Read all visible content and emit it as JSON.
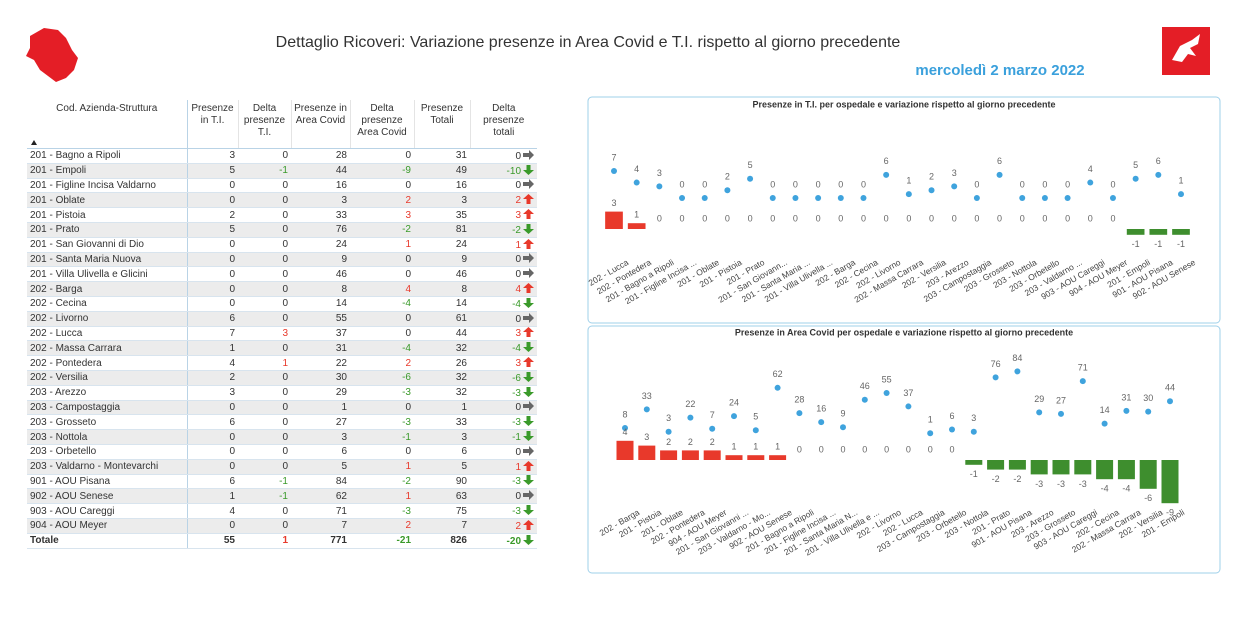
{
  "header": {
    "title": "Dettaglio Ricoveri: Variazione presenze in Area Covid e T.I. rispetto al giorno precedente",
    "date": "mercoledì 2 marzo 2022"
  },
  "table": {
    "columns": [
      "Cod. Azienda-Struttura",
      "Presenze in T.I.",
      "Delta presenze T.I.",
      "Presenze in Area Covid",
      "Delta presenze Area Covid",
      "Presenze Totali",
      "Delta presenze totali"
    ],
    "rows": [
      [
        "201 - Bagno a Ripoli",
        3,
        0,
        28,
        0,
        31,
        0
      ],
      [
        "201 - Empoli",
        5,
        -1,
        44,
        -9,
        49,
        -10
      ],
      [
        "201 - Figline Incisa Valdarno",
        0,
        0,
        16,
        0,
        16,
        0
      ],
      [
        "201 - Oblate",
        0,
        0,
        3,
        2,
        3,
        2
      ],
      [
        "201 - Pistoia",
        2,
        0,
        33,
        3,
        35,
        3
      ],
      [
        "201 - Prato",
        5,
        0,
        76,
        -2,
        81,
        -2
      ],
      [
        "201 - San Giovanni di Dio",
        0,
        0,
        24,
        1,
        24,
        1
      ],
      [
        "201 - Santa Maria Nuova",
        0,
        0,
        9,
        0,
        9,
        0
      ],
      [
        "201 - Villa Ulivella e Glicini",
        0,
        0,
        46,
        0,
        46,
        0
      ],
      [
        "202 - Barga",
        0,
        0,
        8,
        4,
        8,
        4
      ],
      [
        "202 - Cecina",
        0,
        0,
        14,
        -4,
        14,
        -4
      ],
      [
        "202 - Livorno",
        6,
        0,
        55,
        0,
        61,
        0
      ],
      [
        "202 - Lucca",
        7,
        3,
        37,
        0,
        44,
        3
      ],
      [
        "202 - Massa Carrara",
        1,
        0,
        31,
        -4,
        32,
        -4
      ],
      [
        "202 - Pontedera",
        4,
        1,
        22,
        2,
        26,
        3
      ],
      [
        "202 - Versilia",
        2,
        0,
        30,
        -6,
        32,
        -6
      ],
      [
        "203 - Arezzo",
        3,
        0,
        29,
        -3,
        32,
        -3
      ],
      [
        "203 - Campostaggia",
        0,
        0,
        1,
        0,
        1,
        0
      ],
      [
        "203 - Grosseto",
        6,
        0,
        27,
        -3,
        33,
        -3
      ],
      [
        "203 - Nottola",
        0,
        0,
        3,
        -1,
        3,
        -1
      ],
      [
        "203 - Orbetello",
        0,
        0,
        6,
        0,
        6,
        0
      ],
      [
        "203 - Valdarno - Montevarchi",
        0,
        0,
        5,
        1,
        5,
        1
      ],
      [
        "901 - AOU Pisana",
        6,
        -1,
        84,
        -2,
        90,
        -3
      ],
      [
        "902 - AOU Senese",
        1,
        -1,
        62,
        1,
        63,
        0
      ],
      [
        "903 - AOU Careggi",
        4,
        0,
        71,
        -3,
        75,
        -3
      ],
      [
        "904 - AOU Meyer",
        0,
        0,
        7,
        2,
        7,
        2
      ]
    ],
    "total": [
      "Totale",
      55,
      1,
      771,
      -21,
      826,
      -20
    ]
  },
  "chart_data": [
    {
      "type": "combo",
      "title": "Presenze in T.I. per ospedale e variazione rispetto al giorno precedente",
      "categories": [
        "202 - Lucca",
        "202 - Pontedera",
        "201 - Bagno a Ripoli",
        "201 - Figline Incisa ...",
        "201 - Oblate",
        "201 - Pistoia",
        "201 - Prato",
        "201 - San Giovann...",
        "201 - Santa Maria ...",
        "201 - Villa Ulivella ...",
        "202 - Barga",
        "202 - Cecina",
        "202 - Livorno",
        "202 - Massa Carrara",
        "202 - Versilia",
        "203 - Arezzo",
        "203 - Campostaggia",
        "203 - Grosseto",
        "203 - Nottola",
        "203 - Orbetello",
        "203 - Valdarno ...",
        "903 - AOU Careggi",
        "904 - AOU Meyer",
        "201 - Empoli",
        "901 - AOU Pisana",
        "902 - AOU Senese"
      ],
      "series": [
        {
          "type": "scatter",
          "color": "#3fa3dd",
          "values": [
            7,
            4,
            3,
            0,
            0,
            2,
            5,
            0,
            0,
            0,
            0,
            0,
            6,
            1,
            2,
            3,
            0,
            6,
            0,
            0,
            0,
            4,
            0,
            5,
            6,
            1
          ]
        },
        {
          "type": "bar",
          "color": "#e8392b",
          "negative_color": "#3e8e2e",
          "values": [
            3,
            1,
            0,
            0,
            0,
            0,
            0,
            0,
            0,
            0,
            0,
            0,
            0,
            0,
            0,
            0,
            0,
            0,
            0,
            0,
            0,
            0,
            0,
            -1,
            -1,
            -1
          ]
        }
      ]
    },
    {
      "type": "combo",
      "title": "Presenze in Area Covid per ospedale e variazione rispetto al giorno precedente",
      "categories": [
        "202 - Barga",
        "201 - Pistoia",
        "201 - Oblate",
        "202 - Pontedera",
        "904 - AOU Meyer",
        "201 - San Giovanni ...",
        "203 - Valdarno - Mo...",
        "902 - AOU Senese",
        "201 - Bagno a Ripoli",
        "201 - Figline Incisa ...",
        "201 - Santa Maria N...",
        "201 - Villa Ulivella e ...",
        "202 - Livorno",
        "202 - Lucca",
        "203 - Campostaggia",
        "203 - Orbetello",
        "203 - Nottola",
        "201 - Prato",
        "901 - AOU Pisana",
        "203 - Arezzo",
        "203 - Grosseto",
        "903 - AOU Careggi",
        "202 - Cecina",
        "202 - Massa Carrara",
        "202 - Versilia",
        "201 - Empoli"
      ],
      "series": [
        {
          "type": "scatter",
          "color": "#3fa3dd",
          "values": [
            8,
            33,
            3,
            22,
            7,
            24,
            5,
            62,
            28,
            16,
            9,
            46,
            55,
            37,
            1,
            6,
            3,
            76,
            84,
            29,
            27,
            71,
            14,
            31,
            30,
            44
          ]
        },
        {
          "type": "bar",
          "color": "#e8392b",
          "negative_color": "#3e8e2e",
          "values": [
            4,
            3,
            2,
            2,
            2,
            1,
            1,
            1,
            0,
            0,
            0,
            0,
            0,
            0,
            0,
            0,
            -1,
            -2,
            -2,
            -3,
            -3,
            -3,
            -4,
            -4,
            -6,
            -9
          ]
        }
      ]
    }
  ]
}
